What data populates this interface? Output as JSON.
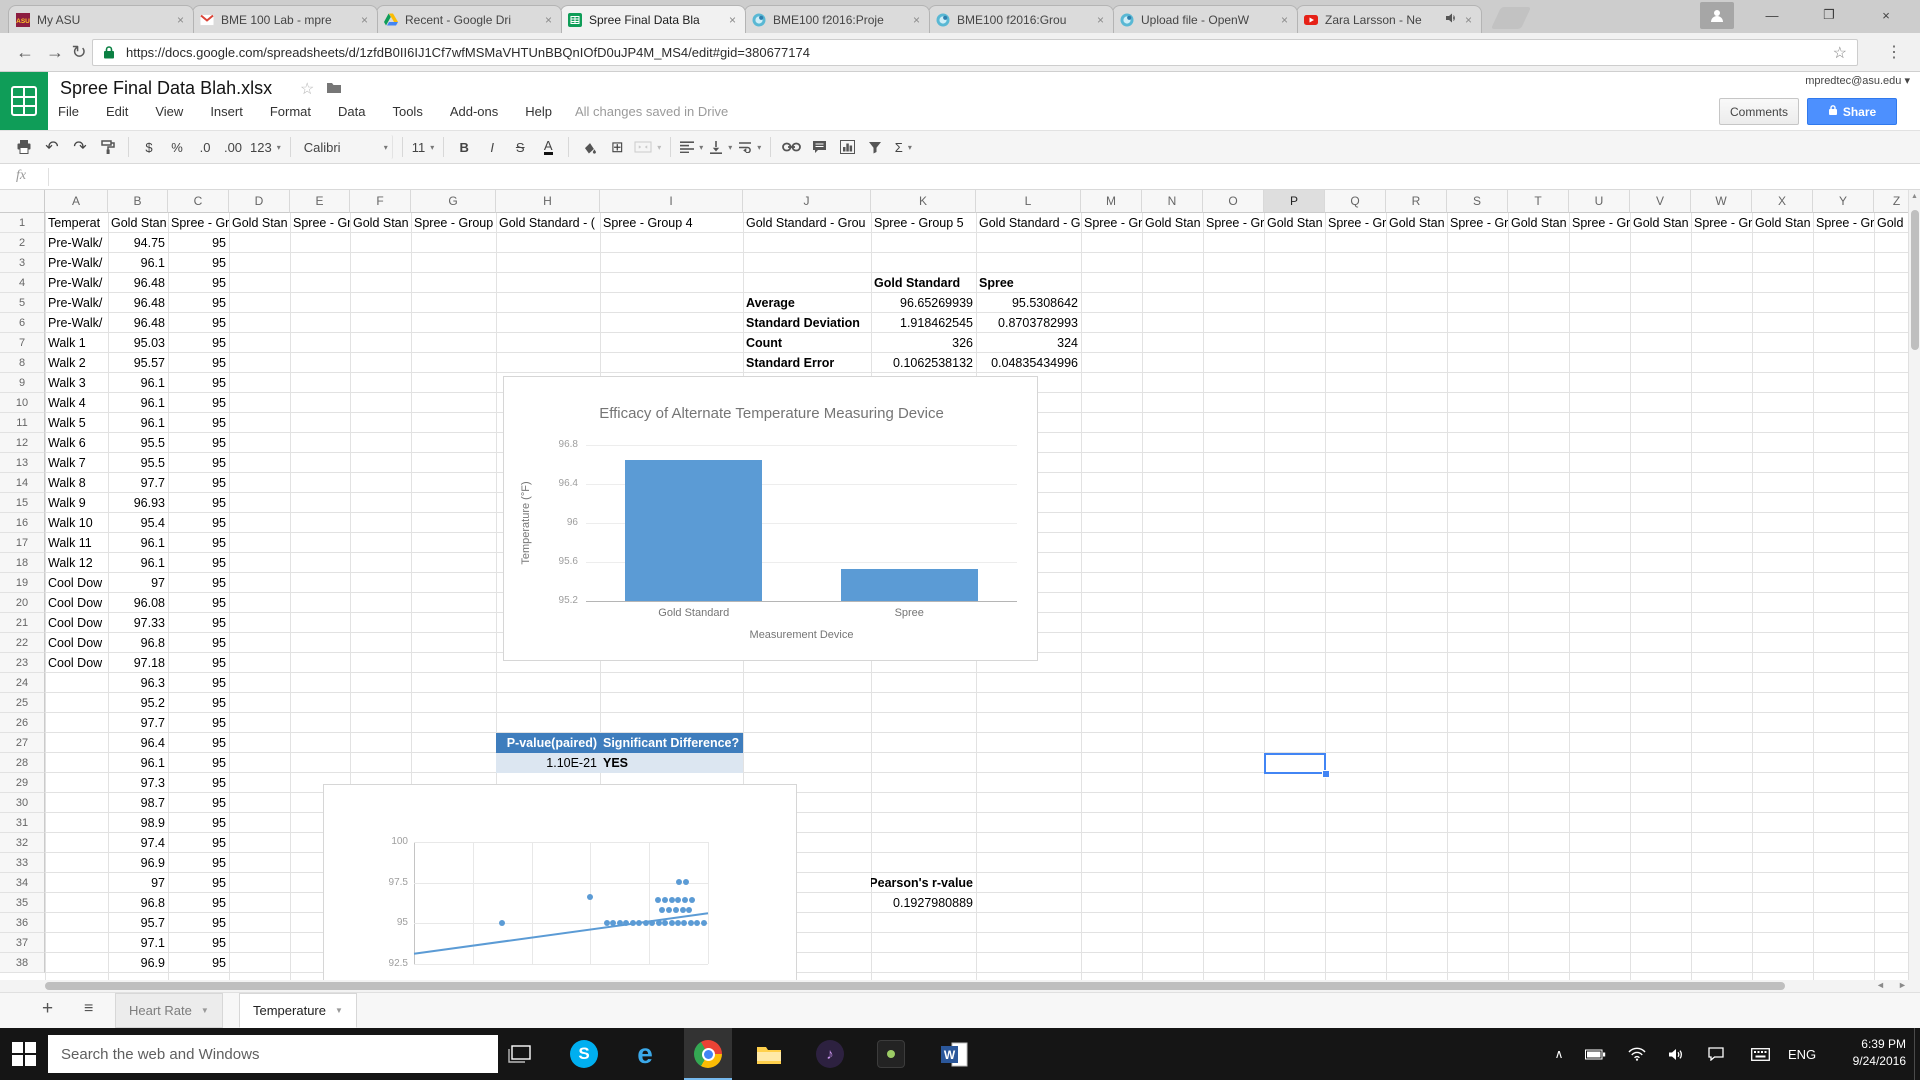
{
  "browser": {
    "tabs": [
      {
        "label": "My ASU",
        "icon": "asu-icon"
      },
      {
        "label": "BME 100 Lab - mpre",
        "icon": "gmail-icon"
      },
      {
        "label": "Recent - Google Dri",
        "icon": "drive-icon"
      },
      {
        "label": "Spree Final Data Bla",
        "icon": "sheets-icon",
        "active": true
      },
      {
        "label": "BME100 f2016:Proje",
        "icon": "openwetware-icon"
      },
      {
        "label": "BME100 f2016:Grou",
        "icon": "openwetware-icon"
      },
      {
        "label": "Upload file - OpenW",
        "icon": "openwetware-icon"
      },
      {
        "label": "Zara Larsson - Ne",
        "icon": "youtube-icon",
        "audio": true
      }
    ],
    "window_controls": [
      "minimize",
      "maximize",
      "close"
    ],
    "url": "https://docs.google.com/spreadsheets/d/1zfdB0II6IJ1Cf7wfMSMaVHTUnBBQnIOfD0uJP4M_MS4/edit#gid=380677174"
  },
  "app": {
    "title": "Spree Final Data Blah.xlsx",
    "menus": [
      "File",
      "Edit",
      "View",
      "Insert",
      "Format",
      "Data",
      "Tools",
      "Add-ons",
      "Help"
    ],
    "save_status": "All changes saved in Drive",
    "account_email": "mpredtec@asu.edu",
    "comments_label": "Comments",
    "share_label": "Share",
    "formula_bar_label": "fx",
    "toolbar": {
      "font_name": "Calibri",
      "font_size": "11",
      "items": [
        {
          "name": "print-icon"
        },
        {
          "name": "undo-icon",
          "glyph": "↶"
        },
        {
          "name": "redo-icon",
          "glyph": "↷"
        },
        {
          "name": "paint-format-icon"
        },
        {
          "sep": true
        },
        {
          "name": "currency-format-button",
          "label": "$"
        },
        {
          "name": "percent-format-button",
          "label": "%"
        },
        {
          "name": "decimal-decrease-button",
          "label": ".0"
        },
        {
          "name": "decimal-increase-button",
          "label": ".00"
        },
        {
          "name": "number-format-menu",
          "label": "123",
          "caret": true
        },
        {
          "sep": true
        },
        {
          "name": "font-family-select",
          "label": "Calibri",
          "caret": true,
          "wide": true
        },
        {
          "sep": true
        },
        {
          "name": "font-size-select",
          "label": "11",
          "caret": true
        },
        {
          "sep": true
        },
        {
          "name": "bold-button",
          "html": "bold"
        },
        {
          "name": "italic-button",
          "html": "italic"
        },
        {
          "name": "strikethrough-button",
          "html": "strike"
        },
        {
          "name": "text-color-button",
          "html": "acolor"
        },
        {
          "sep": true
        },
        {
          "name": "fill-color-button"
        },
        {
          "name": "borders-button",
          "glyph": "⊞"
        },
        {
          "name": "merge-cells-button",
          "disabled": true,
          "caret": true
        },
        {
          "sep": true
        },
        {
          "name": "horizontal-align-button",
          "caret": true
        },
        {
          "name": "vertical-align-button",
          "caret": true
        },
        {
          "name": "text-wrap-button",
          "caret": true
        },
        {
          "sep": true
        },
        {
          "name": "insert-link-button"
        },
        {
          "name": "insert-comment-button"
        },
        {
          "name": "insert-chart-button"
        },
        {
          "name": "filter-button"
        },
        {
          "name": "functions-button",
          "label": "Σ",
          "caret": true
        }
      ]
    }
  },
  "grid": {
    "columns": [
      "A",
      "B",
      "C",
      "D",
      "E",
      "F",
      "G",
      "H",
      "I",
      "J",
      "K",
      "L",
      "M",
      "N",
      "O",
      "P",
      "Q",
      "R",
      "S",
      "T",
      "U",
      "V",
      "W",
      "X",
      "Y",
      "Z"
    ],
    "selected_column": "P",
    "selection": {
      "column": "P",
      "row": 28
    },
    "header_row": [
      "Temperat",
      "Gold Stan",
      "Spree - Gr",
      "Gold Stan",
      "Spree - Gr",
      "Gold Stan",
      "Spree - Group",
      "Gold Standard - (",
      "Spree - Group 4",
      "Gold Standard - Grou",
      "Spree - Group 5",
      "Gold Standard - G",
      "Spree - Gr",
      "Gold Stan",
      "Spree - Gr",
      "Gold Stan",
      "Spree - Gr",
      "Gold Stan",
      "Spree - Gr",
      "Gold Stan",
      "Spree - Gr",
      "Gold Stan",
      "Spree - Gr",
      "Gold Stan",
      "Spree - Gr",
      "Gold"
    ],
    "rows": [
      [
        2,
        "Pre-Walk/",
        "94.75",
        "95"
      ],
      [
        3,
        "Pre-Walk/",
        "96.1",
        "95"
      ],
      [
        4,
        "Pre-Walk/",
        "96.48",
        "95"
      ],
      [
        5,
        "Pre-Walk/",
        "96.48",
        "95"
      ],
      [
        6,
        "Pre-Walk/",
        "96.48",
        "95"
      ],
      [
        7,
        "Walk 1",
        "95.03",
        "95"
      ],
      [
        8,
        "Walk 2",
        "95.57",
        "95"
      ],
      [
        9,
        "Walk 3",
        "96.1",
        "95"
      ],
      [
        10,
        "Walk 4",
        "96.1",
        "95"
      ],
      [
        11,
        "Walk 5",
        "96.1",
        "95"
      ],
      [
        12,
        "Walk 6",
        "95.5",
        "95"
      ],
      [
        13,
        "Walk 7",
        "95.5",
        "95"
      ],
      [
        14,
        "Walk 8",
        "97.7",
        "95"
      ],
      [
        15,
        "Walk 9",
        "96.93",
        "95"
      ],
      [
        16,
        "Walk 10",
        "95.4",
        "95"
      ],
      [
        17,
        "Walk 11",
        "96.1",
        "95"
      ],
      [
        18,
        "Walk 12",
        "96.1",
        "95"
      ],
      [
        19,
        "Cool Dow",
        "97",
        "95"
      ],
      [
        20,
        "Cool Dow",
        "96.08",
        "95"
      ],
      [
        21,
        "Cool Dow",
        "97.33",
        "95"
      ],
      [
        22,
        "Cool Dow",
        "96.8",
        "95"
      ],
      [
        23,
        "Cool Dow",
        "97.18",
        "95"
      ],
      [
        24,
        "",
        "96.3",
        "95"
      ],
      [
        25,
        "",
        "95.2",
        "95"
      ],
      [
        26,
        "",
        "97.7",
        "95"
      ],
      [
        27,
        "",
        "96.4",
        "95"
      ],
      [
        28,
        "",
        "96.1",
        "95"
      ],
      [
        29,
        "",
        "97.3",
        "95"
      ],
      [
        30,
        "",
        "98.7",
        "95"
      ],
      [
        31,
        "",
        "98.9",
        "95"
      ],
      [
        32,
        "",
        "97.4",
        "95"
      ],
      [
        33,
        "",
        "96.9",
        "95"
      ],
      [
        34,
        "",
        "97",
        "95"
      ],
      [
        35,
        "",
        "96.8",
        "95"
      ],
      [
        36,
        "",
        "95.7",
        "95"
      ],
      [
        37,
        "",
        "97.1",
        "95"
      ],
      [
        38,
        "",
        "96.9",
        "95"
      ]
    ],
    "stats": {
      "column_headers": [
        "Gold Standard",
        "Spree"
      ],
      "rows": [
        [
          "Average",
          "96.65269939",
          "95.5308642"
        ],
        [
          "Standard Deviation",
          "1.918462545",
          "0.8703782993"
        ],
        [
          "Count",
          "326",
          "324"
        ],
        [
          "Standard Error",
          "0.1062538132",
          "0.04835434996"
        ]
      ]
    },
    "pvalue_table": {
      "headers": [
        "P-value(paired)",
        "Significant Difference?"
      ],
      "values": [
        "1.10E-21",
        "YES"
      ]
    },
    "pearson": {
      "label": "Pearson's r-value",
      "value": "0.1927980889"
    }
  },
  "chart_data": [
    {
      "type": "bar",
      "title": "Efficacy of Alternate Temperature Measuring Device",
      "categories": [
        "Gold Standard",
        "Spree"
      ],
      "values": [
        96.65,
        95.53
      ],
      "xlabel": "Measurement Device",
      "ylabel": "Temperature (°F)",
      "ylim": [
        95.2,
        96.8
      ],
      "yticks": [
        "96.8",
        "96.4",
        "96",
        "95.6",
        "95.2"
      ],
      "grid": true,
      "bar_color": "#5b9bd5"
    },
    {
      "type": "scatter",
      "title": "",
      "yticks": [
        "100",
        "97.5",
        "95",
        "92.5"
      ],
      "ylim": [
        92.5,
        100
      ],
      "x_axis_visible": false,
      "x_gridline_count": 6,
      "point_color": "#5b9bd5",
      "points": [
        [
          0.3,
          95.0
        ],
        [
          0.6,
          96.6
        ],
        [
          0.655,
          95.0
        ],
        [
          0.678,
          95.0
        ],
        [
          0.7,
          95.0
        ],
        [
          0.722,
          95.0
        ],
        [
          0.744,
          95.0
        ],
        [
          0.766,
          95.0
        ],
        [
          0.788,
          95.0
        ],
        [
          0.81,
          95.0
        ],
        [
          0.832,
          95.0
        ],
        [
          0.854,
          95.0
        ],
        [
          0.876,
          95.0
        ],
        [
          0.898,
          95.0
        ],
        [
          0.92,
          95.0
        ],
        [
          0.942,
          95.0
        ],
        [
          0.964,
          95.0
        ],
        [
          0.986,
          95.0
        ],
        [
          0.845,
          95.8
        ],
        [
          0.868,
          95.8
        ],
        [
          0.891,
          95.8
        ],
        [
          0.914,
          95.8
        ],
        [
          0.937,
          95.8
        ],
        [
          0.83,
          96.45
        ],
        [
          0.853,
          96.45
        ],
        [
          0.876,
          96.45
        ],
        [
          0.899,
          96.45
        ],
        [
          0.922,
          96.45
        ],
        [
          0.945,
          96.45
        ],
        [
          0.9,
          97.55
        ],
        [
          0.925,
          97.55
        ]
      ],
      "trendline": {
        "y_start": 93.1,
        "y_end": 95.6
      }
    }
  ],
  "sheetbar": {
    "tabs": [
      {
        "label": "Heart Rate",
        "active": false
      },
      {
        "label": "Temperature",
        "active": true
      }
    ]
  },
  "taskbar": {
    "search_placeholder": "Search the web and Windows",
    "app_icons": [
      {
        "name": "task-view-icon"
      },
      {
        "name": "skype-icon"
      },
      {
        "name": "edge-icon"
      },
      {
        "name": "chrome-icon",
        "active": true
      },
      {
        "name": "file-explorer-icon"
      },
      {
        "name": "music-app-icon"
      },
      {
        "name": "media-app-icon"
      },
      {
        "name": "word-icon"
      }
    ],
    "tray_icons": [
      "tray-expand-icon",
      "battery-icon",
      "wifi-icon",
      "volume-icon",
      "message-icon",
      "keyboard-icon"
    ],
    "language": "ENG",
    "time": "6:39 PM",
    "date": "9/24/2016"
  }
}
